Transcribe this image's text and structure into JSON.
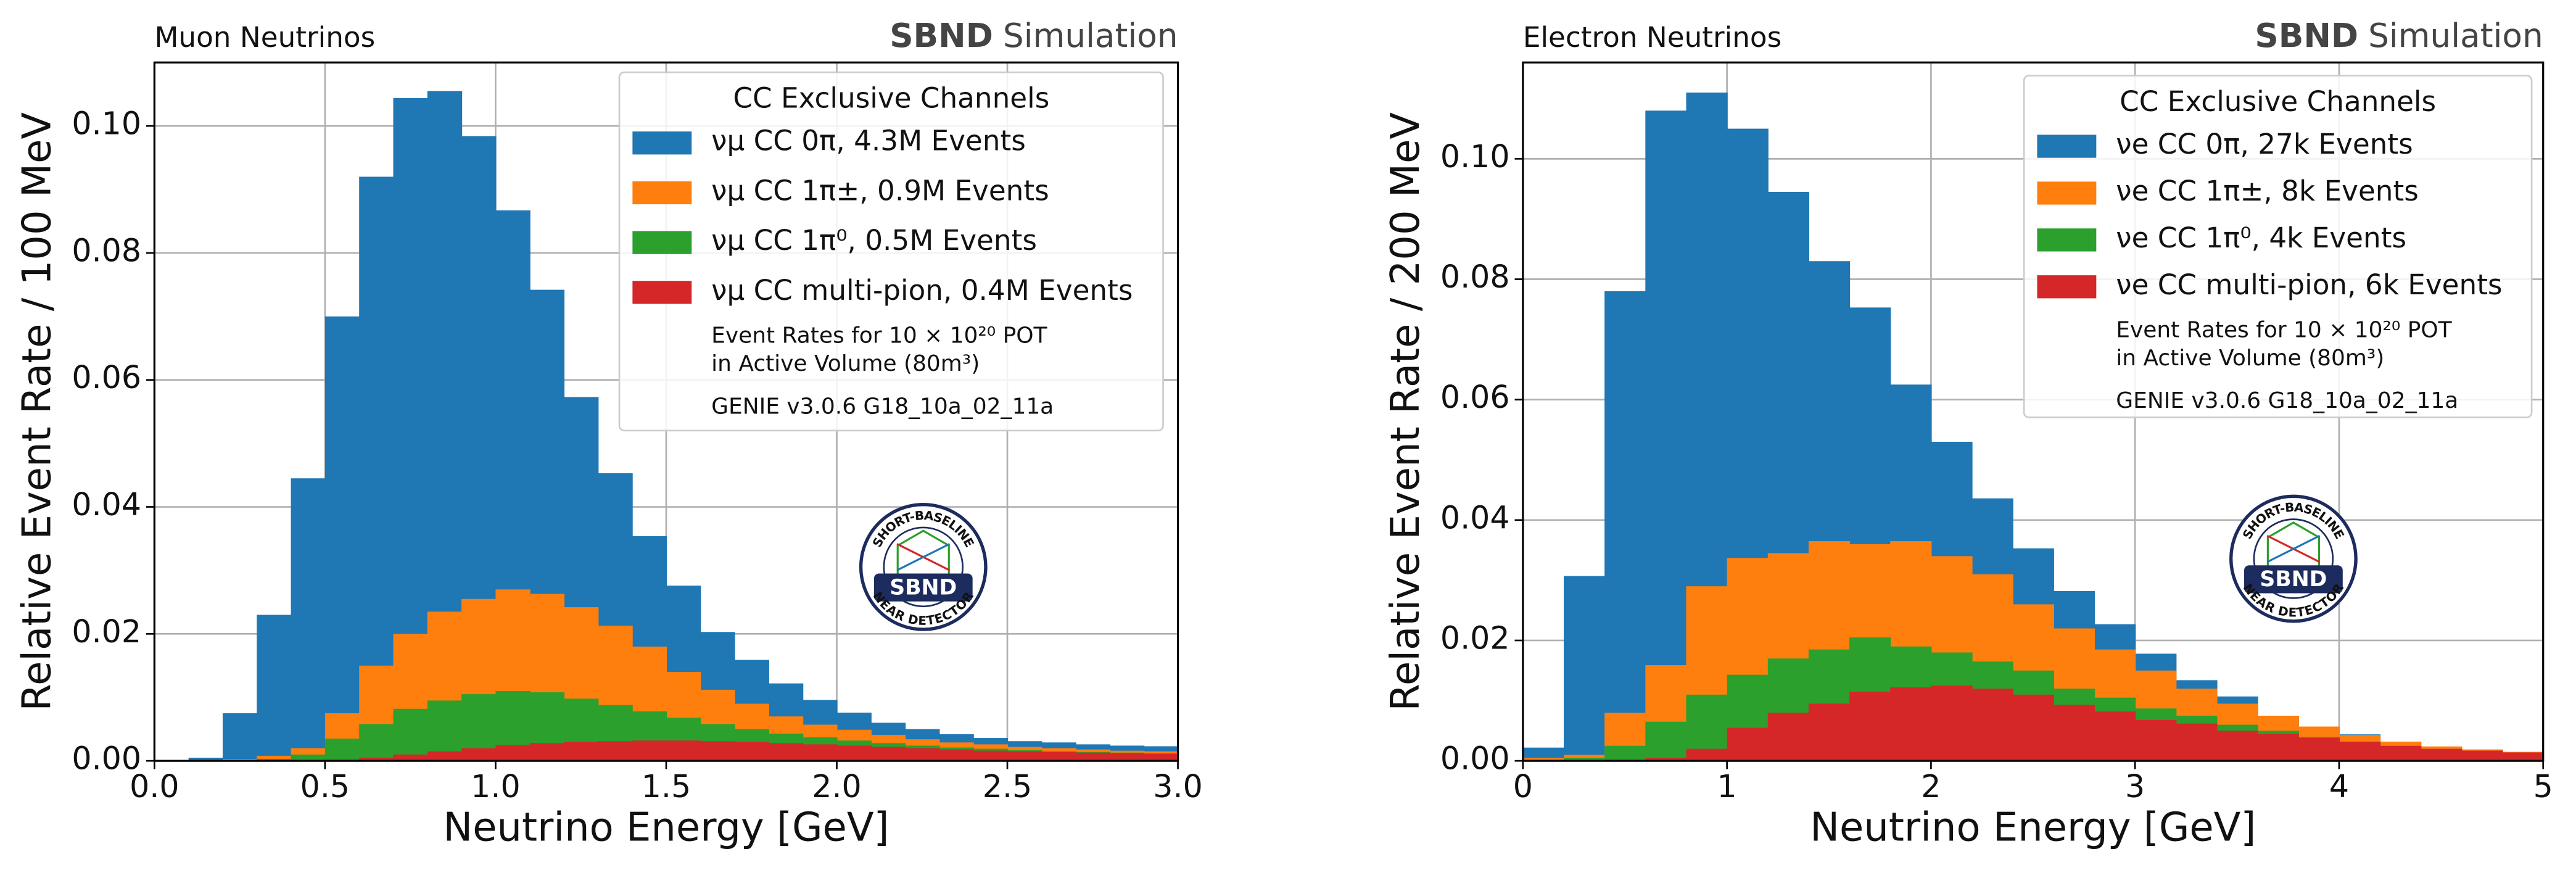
{
  "chart_data": [
    {
      "type": "histogram",
      "title": "Muon Neutrinos",
      "experiment": "SBND",
      "status": "Simulation",
      "xlabel": "Neutrino Energy [GeV]",
      "ylabel": "Relative Event Rate / 100 MeV",
      "legend_title": "CC Exclusive Channels",
      "legend": "upper right",
      "grid": true,
      "notes": [
        "Event Rates for 10 × 10²⁰ POT",
        "in Active Volume (80m³)",
        "GENIE v3.0.6 G18_10a_02_11a"
      ],
      "logo": {
        "top": "SHORT-BASELINE",
        "bottom": "NEAR DETECTOR",
        "center": "SBND"
      },
      "bins": [
        0,
        0.1,
        0.2,
        0.3,
        0.4,
        0.5,
        0.6,
        0.7,
        0.8,
        0.9,
        1.0,
        1.1,
        1.2,
        1.3,
        1.4,
        1.5,
        1.6,
        1.7,
        1.8,
        1.9,
        2.0,
        2.1,
        2.2,
        2.3,
        2.4,
        2.5,
        2.6,
        2.7,
        2.8,
        2.9,
        3.0
      ],
      "xlim": [
        0,
        3
      ],
      "xticks": [
        {
          "value": 0,
          "label": "0.0"
        },
        0.5,
        {
          "value": 1,
          "label": "1.0"
        },
        1.5,
        {
          "value": 2,
          "label": "2.0"
        },
        2.5,
        {
          "value": 3,
          "label": "3.0"
        }
      ],
      "ylim": [
        0,
        0.11
      ],
      "yticks": [
        {
          "value": 0,
          "label": "0.00"
        },
        0.02,
        0.04,
        0.06,
        0.08,
        {
          "value": 0.1,
          "label": "0.10"
        }
      ],
      "series": [
        {
          "name": "νμ CC 0π, 4.3M Events",
          "color": "#1f77b4",
          "values": [
            0,
            0.0005,
            0.0075,
            0.023,
            0.0445,
            0.07,
            0.092,
            0.1044,
            0.1055,
            0.0984,
            0.0867,
            0.0742,
            0.0573,
            0.0453,
            0.0354,
            0.0276,
            0.0203,
            0.0159,
            0.0122,
            0.0096,
            0.0076,
            0.006,
            0.005,
            0.0042,
            0.0036,
            0.0031,
            0.0029,
            0.0026,
            0.0024,
            0.0023
          ]
        },
        {
          "name": "νμ CC 1π±, 0.9M Events",
          "color": "#ff7f0e",
          "values": [
            0,
            0,
            0.0003,
            0.0008,
            0.002,
            0.0075,
            0.015,
            0.02,
            0.0235,
            0.0255,
            0.027,
            0.0263,
            0.0242,
            0.0213,
            0.018,
            0.014,
            0.0112,
            0.009,
            0.007,
            0.0057,
            0.0049,
            0.0041,
            0.0034,
            0.0029,
            0.0026,
            0.0022,
            0.002,
            0.0018,
            0.0016,
            0.0015
          ]
        },
        {
          "name": "νμ CC 1π⁰, 0.5M Events",
          "color": "#2ca02c",
          "values": [
            0,
            0,
            0,
            0.0003,
            0.001,
            0.0035,
            0.0058,
            0.0082,
            0.0095,
            0.0105,
            0.011,
            0.0108,
            0.0098,
            0.0088,
            0.0078,
            0.0068,
            0.0058,
            0.005,
            0.0043,
            0.0037,
            0.0032,
            0.0028,
            0.0024,
            0.0021,
            0.0019,
            0.0017,
            0.0015,
            0.0014,
            0.0013,
            0.0012
          ]
        },
        {
          "name": "νμ CC multi-pion, 0.4M Events",
          "color": "#d62728",
          "values": [
            0,
            0,
            0,
            0,
            0,
            0.0002,
            0.0005,
            0.001,
            0.0015,
            0.002,
            0.0025,
            0.0028,
            0.003,
            0.0031,
            0.0032,
            0.0032,
            0.0031,
            0.003,
            0.0028,
            0.0026,
            0.0024,
            0.0022,
            0.002,
            0.0018,
            0.0016,
            0.0015,
            0.0014,
            0.0013,
            0.0012,
            0.0011
          ]
        }
      ]
    },
    {
      "type": "histogram",
      "title": "Electron Neutrinos",
      "experiment": "SBND",
      "status": "Simulation",
      "xlabel": "Neutrino Energy [GeV]",
      "ylabel": "Relative Event Rate / 200 MeV",
      "legend_title": "CC Exclusive Channels",
      "legend": "upper right",
      "grid": true,
      "notes": [
        "Event Rates for 10 × 10²⁰ POT",
        "in Active Volume (80m³)",
        "GENIE v3.0.6 G18_10a_02_11a"
      ],
      "logo": {
        "top": "SHORT-BASELINE",
        "bottom": "NEAR DETECTOR",
        "center": "SBND"
      },
      "bins": [
        0,
        0.2,
        0.4,
        0.6,
        0.8,
        1.0,
        1.2,
        1.4,
        1.6,
        1.8,
        2.0,
        2.2,
        2.4,
        2.6,
        2.8,
        3.0,
        3.2,
        3.4,
        3.6,
        3.8,
        4.0,
        4.2,
        4.4,
        4.6,
        4.8,
        5.0
      ],
      "xlim": [
        0,
        5
      ],
      "xticks": [
        0,
        1,
        2,
        3,
        4,
        5
      ],
      "ylim": [
        0,
        0.116
      ],
      "yticks": [
        {
          "value": 0,
          "label": "0.00"
        },
        0.02,
        0.04,
        0.06,
        0.08,
        {
          "value": 0.1,
          "label": "0.10"
        }
      ],
      "series": [
        {
          "name": "νe CC 0π, 27k Events",
          "color": "#1f77b4",
          "values": [
            0.0022,
            0.0307,
            0.078,
            0.108,
            0.111,
            0.105,
            0.0945,
            0.083,
            0.0753,
            0.0625,
            0.053,
            0.0436,
            0.0353,
            0.0282,
            0.0227,
            0.0178,
            0.0134,
            0.0107,
            0.0074,
            0.0047,
            0.0044,
            0.0022,
            0.0014,
            0.0011,
            0.001
          ]
        },
        {
          "name": "νe CC 1π±, 8k Events",
          "color": "#ff7f0e",
          "values": [
            0.0005,
            0.001,
            0.008,
            0.0159,
            0.029,
            0.0337,
            0.0345,
            0.0365,
            0.036,
            0.0365,
            0.034,
            0.031,
            0.026,
            0.022,
            0.0185,
            0.015,
            0.012,
            0.0095,
            0.0075,
            0.0057,
            0.0043,
            0.0032,
            0.0024,
            0.0019,
            0.0015
          ]
        },
        {
          "name": "νe CC 1π⁰, 4k Events",
          "color": "#2ca02c",
          "values": [
            0.0002,
            0.0005,
            0.0025,
            0.0065,
            0.011,
            0.0143,
            0.017,
            0.0185,
            0.0205,
            0.019,
            0.018,
            0.0165,
            0.015,
            0.012,
            0.0105,
            0.0087,
            0.0075,
            0.006,
            0.005,
            0.004,
            0.003,
            0.0024,
            0.0018,
            0.0014,
            0.0012
          ]
        },
        {
          "name": "νe CC multi-pion, 6k Events",
          "color": "#d62728",
          "values": [
            0,
            0,
            0.0002,
            0.0005,
            0.002,
            0.0055,
            0.008,
            0.0095,
            0.0115,
            0.0122,
            0.0125,
            0.012,
            0.011,
            0.0093,
            0.0082,
            0.0068,
            0.0062,
            0.005,
            0.0045,
            0.0038,
            0.0032,
            0.0025,
            0.002,
            0.0017,
            0.0014
          ]
        }
      ]
    }
  ]
}
